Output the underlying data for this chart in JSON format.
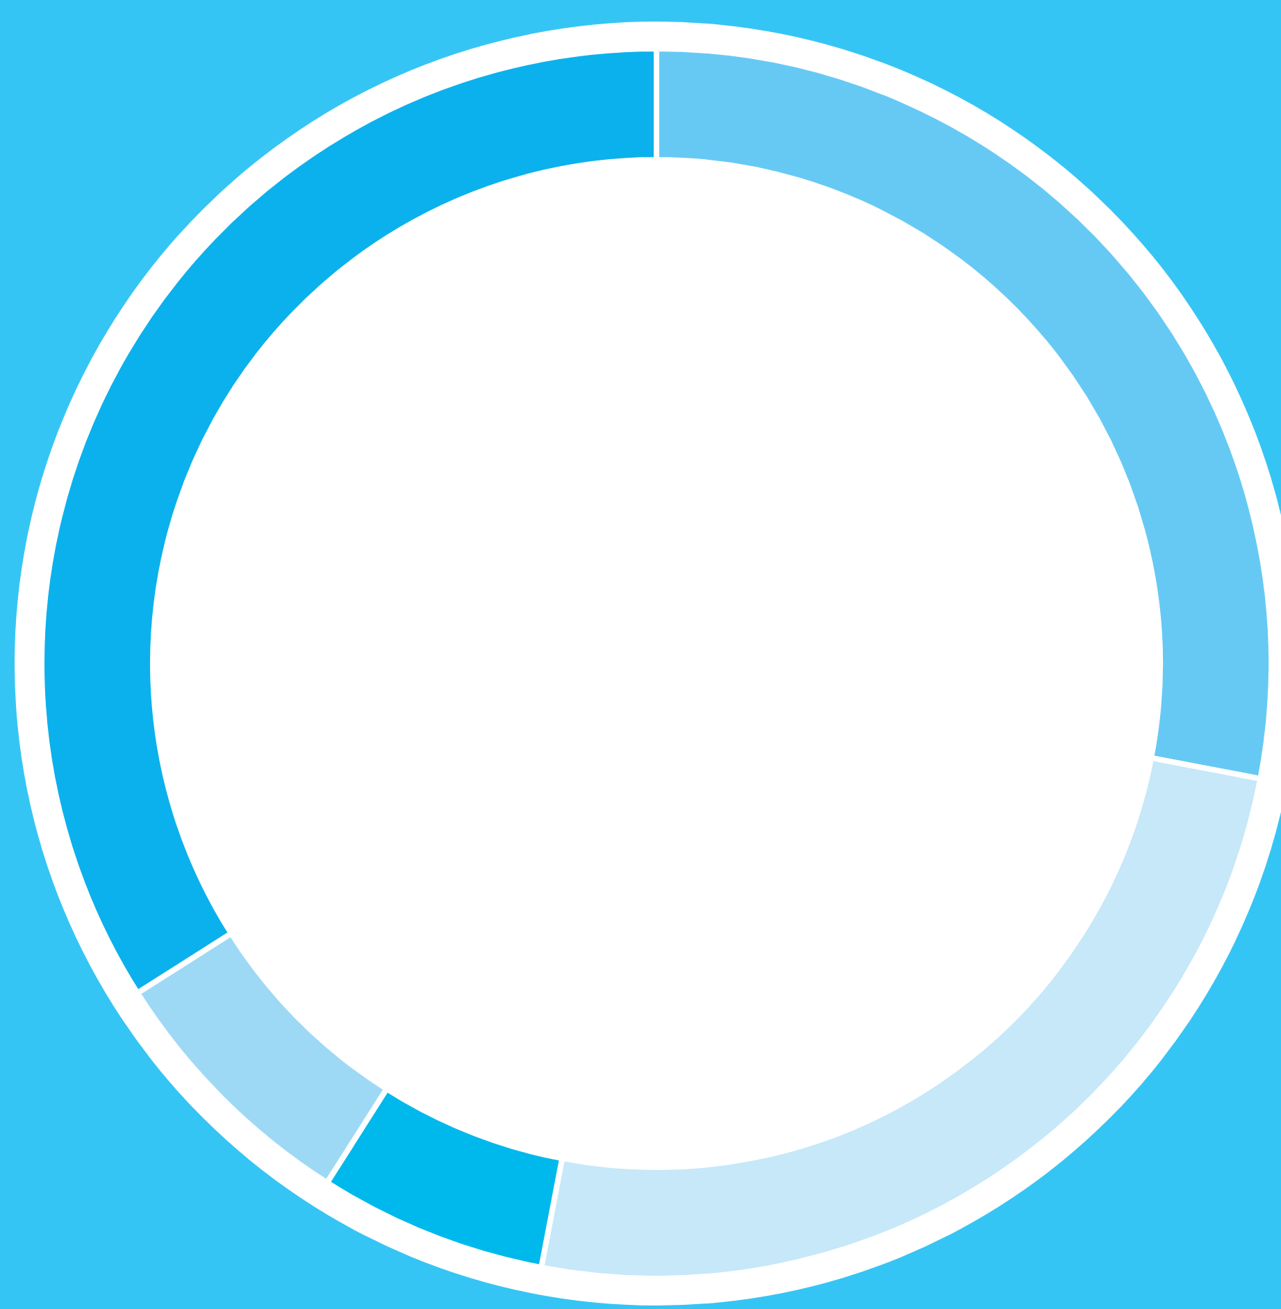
{
  "chart_data": {
    "type": "donut",
    "categories": [
      null,
      null,
      null,
      null,
      null
    ],
    "values": [
      28,
      25,
      6,
      7,
      34
    ],
    "colors": [
      "#66c9f4",
      "#c6e8f9",
      "#00b9ec",
      "#9dd9f5",
      "#0bb1ec"
    ]
  }
}
